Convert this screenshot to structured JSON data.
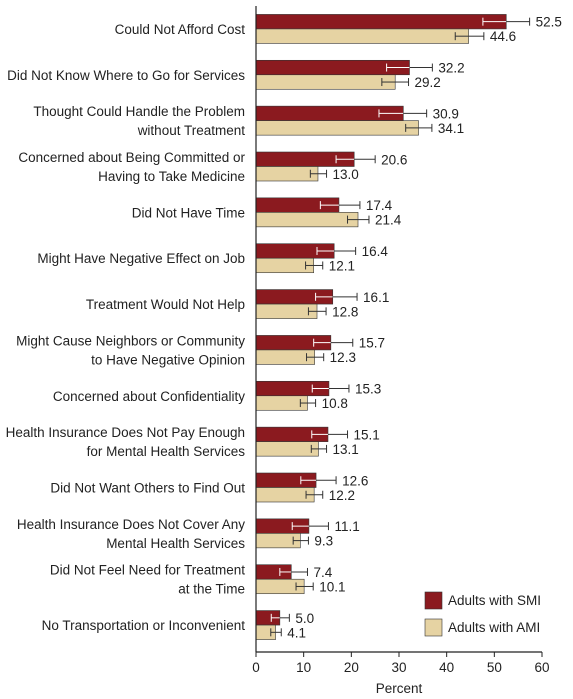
{
  "chart_data": {
    "type": "bar",
    "orientation": "horizontal",
    "categories": [
      [
        "Could Not Afford Cost"
      ],
      [
        "Did Not Know Where to Go for Services"
      ],
      [
        "Thought Could Handle the Problem",
        "without Treatment"
      ],
      [
        "Concerned about Being Committed or",
        "Having to Take Medicine"
      ],
      [
        "Did Not Have Time"
      ],
      [
        "Might Have Negative Effect on Job"
      ],
      [
        "Treatment Would Not Help"
      ],
      [
        "Might Cause Neighbors or Community",
        "to Have Negative Opinion"
      ],
      [
        "Concerned about Confidentiality"
      ],
      [
        "Health Insurance Does Not Pay Enough",
        "for Mental Health Services"
      ],
      [
        "Did Not Want Others to Find Out"
      ],
      [
        "Health Insurance Does Not Cover Any",
        "Mental Health Services"
      ],
      [
        "Did Not Feel Need for Treatment",
        "at the Time"
      ],
      [
        "No Transportation or Inconvenient"
      ]
    ],
    "series": [
      {
        "name": "Adults with SMI",
        "color": "#8b1a1f",
        "values": [
          52.5,
          32.2,
          30.9,
          20.6,
          17.4,
          16.4,
          16.1,
          15.7,
          15.3,
          15.1,
          12.6,
          11.1,
          7.4,
          5.0
        ],
        "value_labels": [
          "52.5",
          "32.2",
          "30.9",
          "20.6",
          "17.4",
          "16.4",
          "16.1",
          "15.7",
          "15.3",
          "15.1",
          "12.6",
          "11.1",
          "7.4",
          "5.0"
        ],
        "error_low": [
          47.6,
          27.4,
          25.8,
          16.8,
          13.5,
          12.8,
          12.5,
          12.1,
          11.8,
          11.7,
          9.4,
          7.6,
          5.0,
          3.2
        ],
        "error_high": [
          57.4,
          37.0,
          35.8,
          25.0,
          21.8,
          20.9,
          21.2,
          20.3,
          19.5,
          19.2,
          16.8,
          15.2,
          10.8,
          7.0
        ]
      },
      {
        "name": "Adults with AMI",
        "color": "#e6d3a3",
        "values": [
          44.6,
          29.2,
          34.1,
          13.0,
          21.4,
          12.1,
          12.8,
          12.3,
          10.8,
          13.1,
          12.2,
          9.3,
          10.1,
          4.1
        ],
        "value_labels": [
          "44.6",
          "29.2",
          "34.1",
          "13.0",
          "21.4",
          "12.1",
          "12.8",
          "12.3",
          "10.8",
          "13.1",
          "12.2",
          "9.3",
          "10.1",
          "4.1"
        ],
        "error_low": [
          41.8,
          26.4,
          31.4,
          11.4,
          19.2,
          10.4,
          11.0,
          10.6,
          9.3,
          11.6,
          10.5,
          7.8,
          8.4,
          3.1
        ],
        "error_high": [
          47.8,
          32.0,
          36.9,
          14.8,
          23.7,
          14.0,
          14.7,
          14.2,
          12.5,
          14.8,
          14.0,
          11.0,
          12.0,
          5.3
        ]
      }
    ],
    "xlabel": "Percent",
    "xlim": [
      0,
      60
    ],
    "xticks": [
      0,
      10,
      20,
      30,
      40,
      50,
      60
    ],
    "grid": false,
    "legend_position": "bottom-right"
  }
}
